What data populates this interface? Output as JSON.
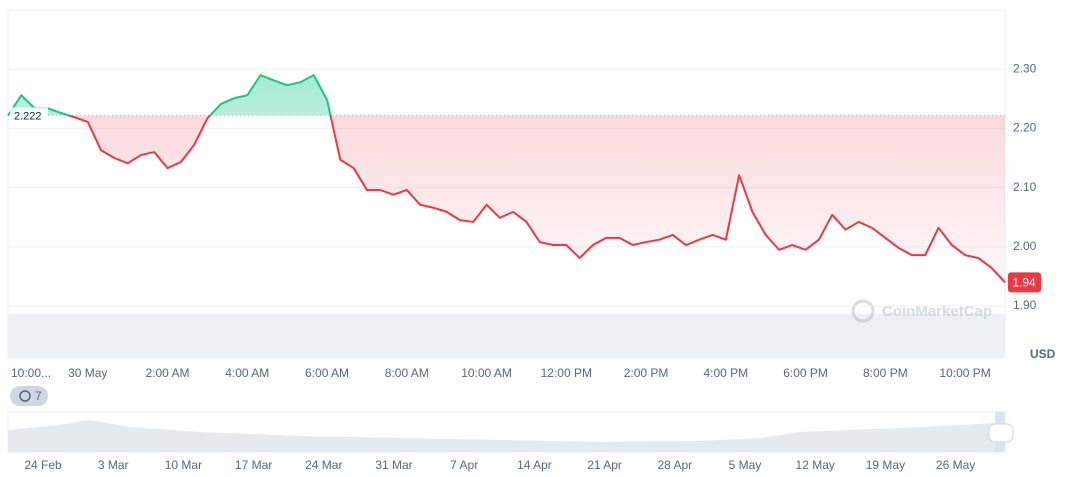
{
  "chart_data": {
    "type": "line",
    "categories": [
      "10:00...",
      null,
      null,
      null,
      null,
      null,
      "30 May",
      null,
      null,
      null,
      null,
      null,
      "2:00 AM",
      null,
      null,
      null,
      null,
      null,
      "4:00 AM",
      null,
      null,
      null,
      null,
      null,
      "6:00 AM",
      null,
      null,
      null,
      null,
      null,
      "8:00 AM",
      null,
      null,
      null,
      null,
      null,
      "10:00 AM",
      null,
      null,
      null,
      null,
      null,
      "12:00 PM",
      null,
      null,
      null,
      null,
      null,
      "2:00 PM",
      null,
      null,
      null,
      null,
      null,
      "4:00 PM",
      null,
      null,
      null,
      null,
      null,
      "6:00 PM",
      null,
      null,
      null,
      null,
      null,
      "8:00 PM",
      null,
      null,
      null,
      null,
      null,
      "10:00 PM",
      null,
      null,
      null
    ],
    "values": [
      2.222,
      2.256,
      2.234,
      2.234,
      2.226,
      2.219,
      2.211,
      2.163,
      2.15,
      2.141,
      2.155,
      2.16,
      2.133,
      2.143,
      2.172,
      2.217,
      2.241,
      2.251,
      2.256,
      2.29,
      2.281,
      2.273,
      2.278,
      2.29,
      2.248,
      2.147,
      2.133,
      2.096,
      2.096,
      2.088,
      2.096,
      2.071,
      2.066,
      2.059,
      2.045,
      2.042,
      2.071,
      2.049,
      2.059,
      2.042,
      2.008,
      2.003,
      2.003,
      1.981,
      2.003,
      2.015,
      2.015,
      2.003,
      2.008,
      2.012,
      2.02,
      2.003,
      2.012,
      2.02,
      2.012,
      2.121,
      2.059,
      2.02,
      1.995,
      2.003,
      1.995,
      2.012,
      2.054,
      2.029,
      2.042,
      2.032,
      2.015,
      1.998,
      1.986,
      1.986,
      2.032,
      2.003,
      1.986,
      1.981,
      1.964,
      1.94
    ],
    "baseline": 2.222,
    "current_price": 1.94,
    "color_up": "#16c784",
    "color_down": "#ea3943",
    "ylim": [
      1.9,
      2.4
    ],
    "yticks": [
      {
        "value": 1.9,
        "label": "1.90"
      },
      {
        "value": 2,
        "label": "2.00"
      },
      {
        "value": 2.1,
        "label": "2.10"
      },
      {
        "value": 2.2,
        "label": "2.20"
      },
      {
        "value": 2.3,
        "label": "2.30"
      }
    ],
    "grid": true,
    "currency": "USD",
    "watermark": "CoinMarketCap",
    "badge": "7",
    "navigator_labels": [
      "24 Feb",
      "3 Mar",
      "10 Mar",
      "17 Mar",
      "24 Mar",
      "31 Mar",
      "7 Apr",
      "14 Apr",
      "21 Apr",
      "28 Apr",
      "5 May",
      "12 May",
      "19 May",
      "26 May"
    ]
  }
}
